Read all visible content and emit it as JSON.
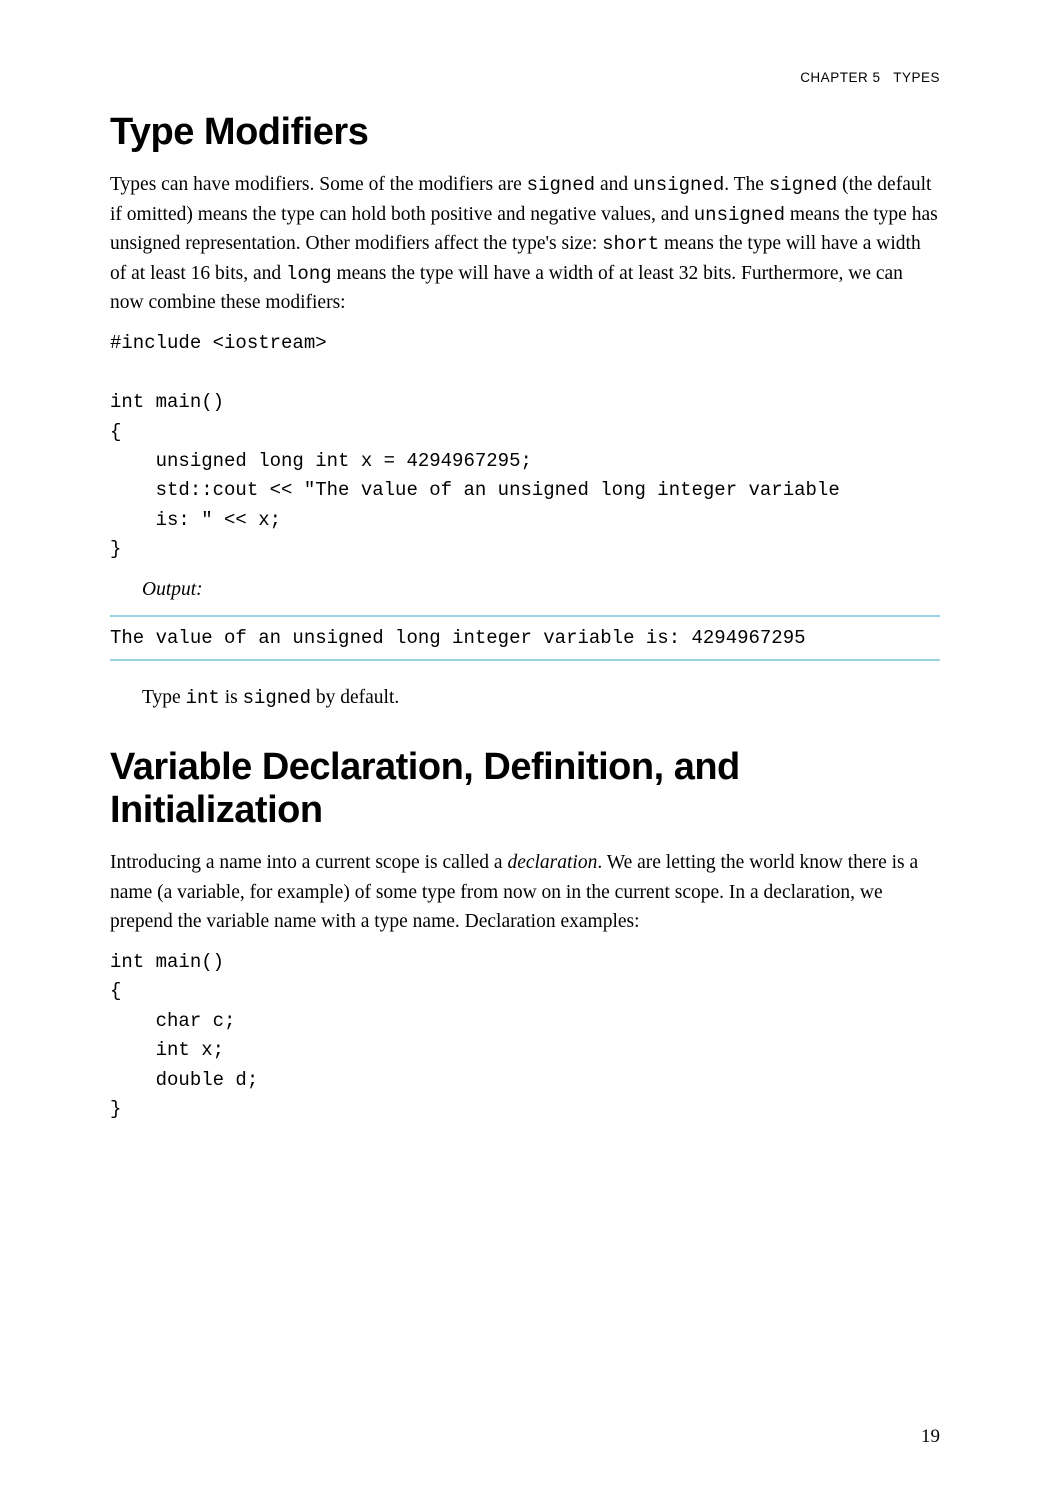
{
  "header": {
    "chapter_label": "CHAPTER 5",
    "chapter_title": "TYPES"
  },
  "section1": {
    "heading": "Type Modifiers",
    "para_parts": [
      {
        "t": "Types can have modifiers. Some of the modifiers are "
      },
      {
        "t": "signed",
        "mono": true
      },
      {
        "t": " and "
      },
      {
        "t": "unsigned",
        "mono": true
      },
      {
        "t": ". The "
      },
      {
        "t": "signed",
        "mono": true
      },
      {
        "t": " (the default if omitted) means the type can hold both positive and negative values, and "
      },
      {
        "t": "unsigned",
        "mono": true
      },
      {
        "t": " means the type has unsigned representation. Other modifiers affect the type's size: "
      },
      {
        "t": "short",
        "mono": true
      },
      {
        "t": " means the type will have a width of at least 16 bits, and "
      },
      {
        "t": "long",
        "mono": true
      },
      {
        "t": " means the type will have a width of at least 32 bits. Furthermore, we can now combine these modifiers:"
      }
    ],
    "code": "#include <iostream>\n\nint main()\n{\n    unsigned long int x = 4294967295;\n    std::cout << \"The value of an unsigned long integer variable\n    is: \" << x;\n}",
    "output_label": "Output:",
    "output_text": "The value of an unsigned long integer variable is: 4294967295",
    "followup_parts": [
      {
        "t": "Type "
      },
      {
        "t": "int",
        "mono": true
      },
      {
        "t": " is "
      },
      {
        "t": "signed",
        "mono": true
      },
      {
        "t": " by default."
      }
    ]
  },
  "section2": {
    "heading": "Variable Declaration, Definition, and Initialization",
    "para_parts": [
      {
        "t": "Introducing a name into a current scope is called a "
      },
      {
        "t": "declaration",
        "italic": true
      },
      {
        "t": ". We are letting the world know there is a name (a variable, for example) of some type from now on in the current scope. In a declaration, we prepend the variable name with a type name. Declaration examples:"
      }
    ],
    "code": "int main()\n{\n    char c;\n    int x;\n    double d;\n}"
  },
  "page_number": "19",
  "colors": {
    "output_border": "#97d4e3",
    "text": "#000000",
    "background": "#ffffff"
  },
  "fonts": {
    "body_family": "Palatino / Georgia serif",
    "heading_family": "Arial Black",
    "mono_family": "Courier New",
    "body_size_pt": 15,
    "heading_size_pt": 29,
    "code_size_pt": 14.5,
    "header_size_pt": 10
  }
}
